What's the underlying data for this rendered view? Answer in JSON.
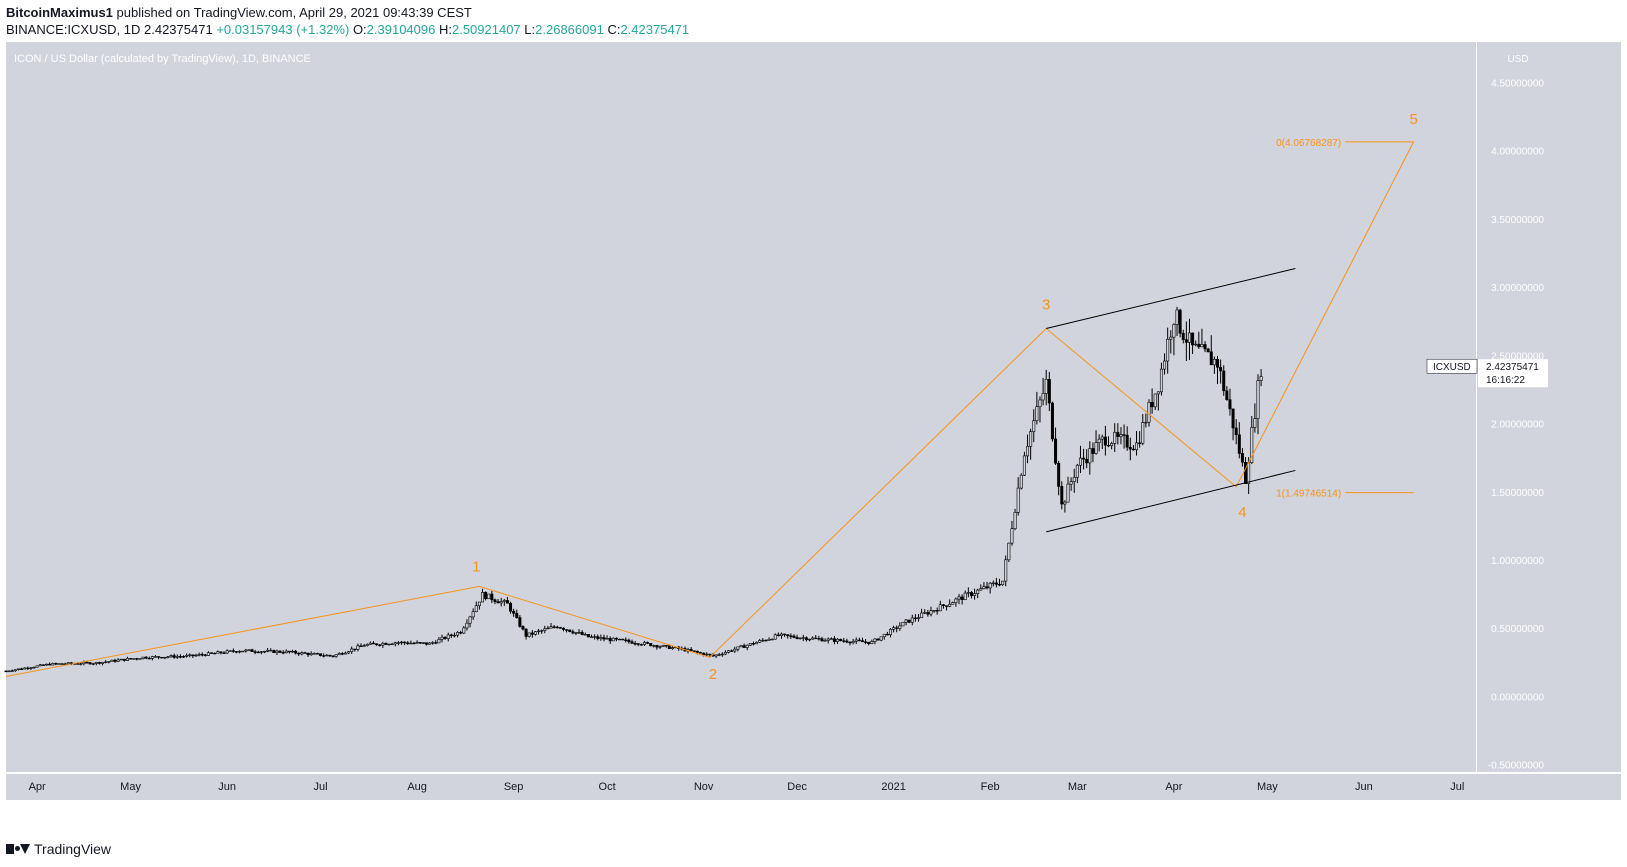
{
  "header": {
    "author": "BitcoinMaximus1",
    "published_text": " published on TradingView.com, April 29, 2021 09:43:39 CEST",
    "symbol_line": "BINANCE:ICXUSD, 1D",
    "last": "2.42375471",
    "change": "+0.03157943 (+1.32%)",
    "o_label": "O:",
    "o_value": "2.39104096",
    "h_label": "H:",
    "h_value": "2.50921407",
    "l_label": "L:",
    "l_value": "2.26866091",
    "c_label": "C:",
    "c_value": "2.42375471"
  },
  "footer": {
    "brand": "TradingView"
  },
  "chart_data": {
    "type": "candlestick",
    "title": "ICON / US Dollar (calculated by TradingView), 1D, BINANCE",
    "y_unit": "USD",
    "ylim": [
      -0.5,
      4.5
    ],
    "y_ticks": [
      "4.50000000",
      "4.00000000",
      "3.50000000",
      "3.00000000",
      "2.50000000",
      "2.00000000",
      "1.50000000",
      "1.00000000",
      "0.50000000",
      "0.00000000",
      "-0.50000000"
    ],
    "y_tick_values": [
      4.5,
      4.0,
      3.5,
      3.0,
      2.5,
      2.0,
      1.5,
      1.0,
      0.5,
      0.0,
      -0.5
    ],
    "x_ticks": [
      "Apr",
      "May",
      "Jun",
      "Jul",
      "Aug",
      "Sep",
      "Oct",
      "Nov",
      "Dec",
      "2021",
      "Feb",
      "Mar",
      "Apr",
      "May",
      "Jun",
      "Jul"
    ],
    "x_tick_dates": [
      "2020-04-01",
      "2020-05-01",
      "2020-06-01",
      "2020-07-01",
      "2020-08-01",
      "2020-09-01",
      "2020-10-01",
      "2020-11-01",
      "2020-12-01",
      "2021-01-01",
      "2021-02-01",
      "2021-03-01",
      "2021-04-01",
      "2021-05-01",
      "2021-06-01",
      "2021-07-01"
    ],
    "x_range": [
      "2020-03-22",
      "2021-07-07"
    ],
    "last_price": {
      "symbol": "ICXUSD",
      "value": "2.42375471",
      "countdown": "16:16:22",
      "price": 2.42375471
    },
    "price_path": [
      [
        "2020-03-22",
        0.19
      ],
      [
        "2020-04-05",
        0.24
      ],
      [
        "2020-04-20",
        0.25
      ],
      [
        "2020-05-05",
        0.29
      ],
      [
        "2020-05-20",
        0.3
      ],
      [
        "2020-06-05",
        0.34
      ],
      [
        "2020-06-20",
        0.33
      ],
      [
        "2020-07-05",
        0.3
      ],
      [
        "2020-07-15",
        0.38
      ],
      [
        "2020-07-25",
        0.4
      ],
      [
        "2020-08-05",
        0.39
      ],
      [
        "2020-08-15",
        0.48
      ],
      [
        "2020-08-22",
        0.75
      ],
      [
        "2020-08-30",
        0.68
      ],
      [
        "2020-09-05",
        0.45
      ],
      [
        "2020-09-15",
        0.52
      ],
      [
        "2020-09-25",
        0.44
      ],
      [
        "2020-10-10",
        0.4
      ],
      [
        "2020-10-25",
        0.35
      ],
      [
        "2020-11-04",
        0.3
      ],
      [
        "2020-11-15",
        0.38
      ],
      [
        "2020-11-25",
        0.45
      ],
      [
        "2020-12-10",
        0.42
      ],
      [
        "2020-12-25",
        0.4
      ],
      [
        "2021-01-05",
        0.55
      ],
      [
        "2021-01-15",
        0.65
      ],
      [
        "2021-01-25",
        0.75
      ],
      [
        "2021-02-05",
        0.85
      ],
      [
        "2021-02-12",
        1.8
      ],
      [
        "2021-02-19",
        2.3
      ],
      [
        "2021-02-24",
        1.4
      ],
      [
        "2021-03-01",
        1.7
      ],
      [
        "2021-03-10",
        1.9
      ],
      [
        "2021-03-20",
        1.85
      ],
      [
        "2021-03-27",
        2.3
      ],
      [
        "2021-04-01",
        2.8
      ],
      [
        "2021-04-07",
        2.55
      ],
      [
        "2021-04-15",
        2.45
      ],
      [
        "2021-04-20",
        2.0
      ],
      [
        "2021-04-24",
        1.6
      ],
      [
        "2021-04-27",
        2.1
      ],
      [
        "2021-04-29",
        2.42
      ]
    ],
    "annotations": {
      "wave_labels": [
        {
          "label": "1",
          "date": "2020-08-20",
          "price": 0.92
        },
        {
          "label": "2",
          "date": "2020-11-04",
          "price": 0.13
        },
        {
          "label": "3",
          "date": "2021-02-19",
          "price": 2.84
        },
        {
          "label": "4",
          "date": "2021-04-23",
          "price": 1.32
        },
        {
          "label": "5",
          "date": "2021-06-17",
          "price": 4.2
        }
      ],
      "wave_path": [
        [
          "2020-03-22",
          0.15
        ],
        [
          "2020-08-21",
          0.81
        ],
        [
          "2020-11-03",
          0.29
        ],
        [
          "2021-02-19",
          2.7
        ],
        [
          "2021-04-21",
          1.54
        ],
        [
          "2021-06-17",
          4.07
        ]
      ],
      "channel_upper": [
        [
          "2021-02-19",
          2.7
        ],
        [
          "2021-05-10",
          3.14
        ]
      ],
      "channel_lower": [
        [
          "2021-02-19",
          1.21
        ],
        [
          "2021-05-10",
          1.66
        ]
      ],
      "fib_levels": [
        {
          "label": "0(4.06768287)",
          "price": 4.06768287
        },
        {
          "label": "1(1.49746514)",
          "price": 1.49746514
        }
      ],
      "fib_date_range": [
        "2021-05-26",
        "2021-06-17"
      ]
    },
    "colors": {
      "background": "#d1d4dc",
      "wave": "#f7931a",
      "channel": "#000000",
      "candle": "#000000"
    },
    "grid": false
  }
}
